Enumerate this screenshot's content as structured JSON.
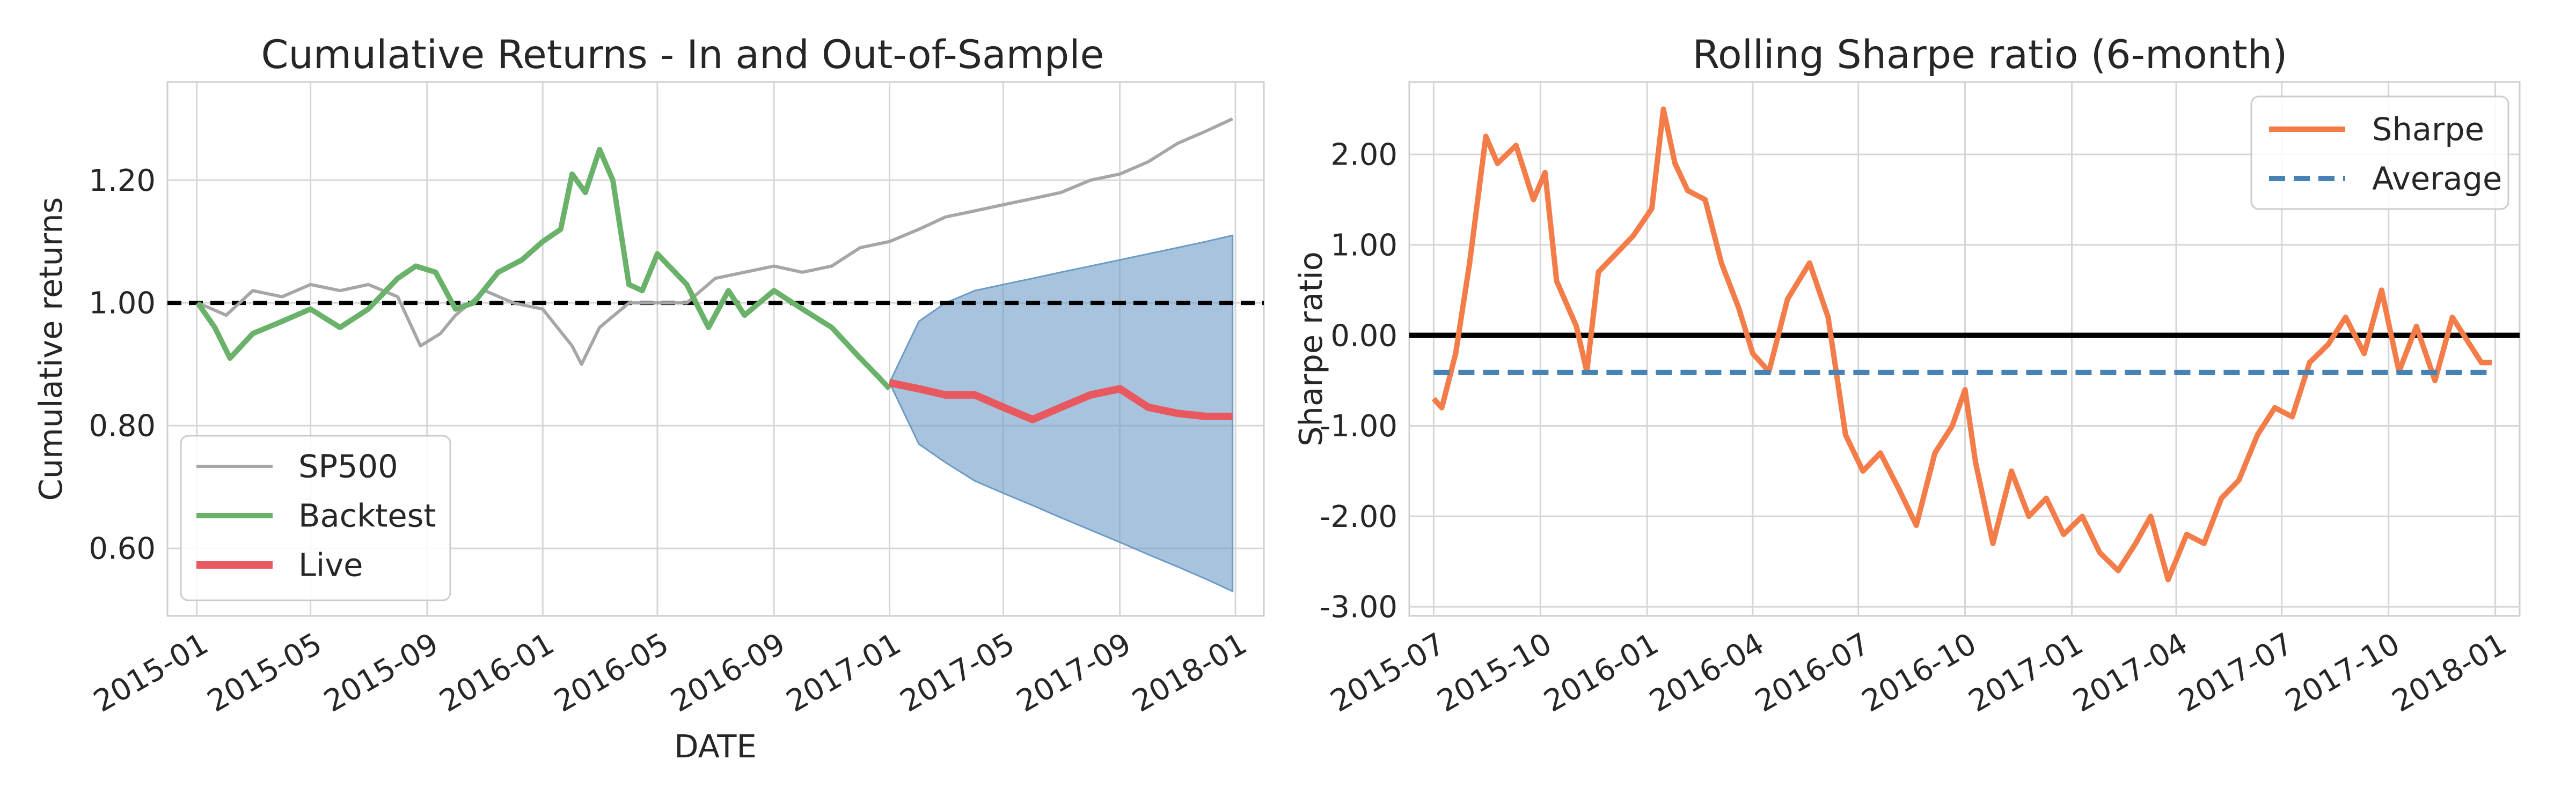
{
  "chart_data": [
    {
      "type": "line",
      "title": "Cumulative Returns - In and Out-of-Sample",
      "xlabel": "DATE",
      "ylabel": "Cumulative returns",
      "xlim": [
        "2014-12-01",
        "2018-01-31"
      ],
      "ylim": [
        0.49,
        1.36
      ],
      "x_ticks": [
        "2015-01",
        "2015-05",
        "2015-09",
        "2016-01",
        "2016-05",
        "2016-09",
        "2017-01",
        "2017-05",
        "2017-09",
        "2018-01"
      ],
      "y_ticks": [
        0.6,
        0.8,
        1.0,
        1.2
      ],
      "y_tick_labels": [
        "0.60",
        "0.80",
        "1.00",
        "1.20"
      ],
      "grid": true,
      "legend_position": "lower-left",
      "reference_line": {
        "y": 1.0,
        "style": "dashed",
        "color": "#000000"
      },
      "series": [
        {
          "name": "SP500",
          "color": "#a6a6a6",
          "x": [
            "2015-01-02",
            "2015-02-01",
            "2015-03-01",
            "2015-04-01",
            "2015-05-01",
            "2015-06-01",
            "2015-07-01",
            "2015-08-01",
            "2015-08-25",
            "2015-09-15",
            "2015-10-01",
            "2015-11-01",
            "2015-12-01",
            "2016-01-01",
            "2016-02-01",
            "2016-02-11",
            "2016-03-01",
            "2016-04-01",
            "2016-05-01",
            "2016-06-01",
            "2016-07-01",
            "2016-08-01",
            "2016-09-01",
            "2016-10-01",
            "2016-11-01",
            "2016-12-01",
            "2017-01-01",
            "2017-02-01",
            "2017-03-01",
            "2017-04-01",
            "2017-05-01",
            "2017-06-01",
            "2017-07-01",
            "2017-08-01",
            "2017-09-01",
            "2017-10-01",
            "2017-11-01",
            "2017-12-01",
            "2017-12-29"
          ],
          "y": [
            1.0,
            0.98,
            1.02,
            1.01,
            1.03,
            1.02,
            1.03,
            1.01,
            0.93,
            0.95,
            0.98,
            1.02,
            1.0,
            0.99,
            0.93,
            0.9,
            0.96,
            1.0,
            1.0,
            1.0,
            1.04,
            1.05,
            1.06,
            1.05,
            1.06,
            1.09,
            1.1,
            1.12,
            1.14,
            1.15,
            1.16,
            1.17,
            1.18,
            1.2,
            1.21,
            1.23,
            1.26,
            1.28,
            1.3
          ]
        },
        {
          "name": "Backtest",
          "color": "#6ab26a",
          "x": [
            "2015-01-02",
            "2015-01-20",
            "2015-02-05",
            "2015-03-01",
            "2015-04-01",
            "2015-05-01",
            "2015-06-01",
            "2015-07-01",
            "2015-08-01",
            "2015-08-20",
            "2015-09-10",
            "2015-10-01",
            "2015-10-20",
            "2015-11-15",
            "2015-12-10",
            "2016-01-01",
            "2016-01-20",
            "2016-02-01",
            "2016-02-15",
            "2016-03-01",
            "2016-03-15",
            "2016-04-01",
            "2016-04-15",
            "2016-05-01",
            "2016-06-01",
            "2016-06-24",
            "2016-07-15",
            "2016-08-01",
            "2016-09-01",
            "2016-10-01",
            "2016-11-01",
            "2016-12-01",
            "2016-12-20",
            "2017-01-01"
          ],
          "y": [
            1.0,
            0.96,
            0.91,
            0.95,
            0.97,
            0.99,
            0.96,
            0.99,
            1.04,
            1.06,
            1.05,
            0.99,
            1.0,
            1.05,
            1.07,
            1.1,
            1.12,
            1.21,
            1.18,
            1.25,
            1.2,
            1.03,
            1.02,
            1.08,
            1.03,
            0.96,
            1.02,
            0.98,
            1.02,
            0.99,
            0.96,
            0.91,
            0.88,
            0.86
          ]
        },
        {
          "name": "Live",
          "color": "#e8585e",
          "x": [
            "2017-01-01",
            "2017-02-01",
            "2017-03-01",
            "2017-04-01",
            "2017-05-01",
            "2017-06-01",
            "2017-07-01",
            "2017-08-01",
            "2017-09-01",
            "2017-10-01",
            "2017-11-01",
            "2017-12-01",
            "2017-12-29"
          ],
          "y": [
            0.87,
            0.86,
            0.85,
            0.85,
            0.83,
            0.81,
            0.83,
            0.85,
            0.86,
            0.83,
            0.82,
            0.815,
            0.815
          ]
        }
      ],
      "cone": {
        "color": "#6c9bc6",
        "x": [
          "2017-01-01",
          "2017-02-01",
          "2017-03-01",
          "2017-04-01",
          "2017-05-01",
          "2017-06-01",
          "2017-07-01",
          "2017-08-01",
          "2017-09-01",
          "2017-10-01",
          "2017-11-01",
          "2017-12-01",
          "2017-12-29"
        ],
        "upper": [
          0.87,
          0.97,
          1.0,
          1.02,
          1.03,
          1.04,
          1.05,
          1.06,
          1.07,
          1.08,
          1.09,
          1.1,
          1.11
        ],
        "lower": [
          0.87,
          0.77,
          0.74,
          0.71,
          0.69,
          0.67,
          0.65,
          0.63,
          0.61,
          0.59,
          0.57,
          0.55,
          0.53
        ]
      }
    },
    {
      "type": "line",
      "title": "Rolling Sharpe ratio (6-month)",
      "xlabel": "",
      "ylabel": "Sharpe ratio",
      "xlim": [
        "2015-06-10",
        "2018-01-22"
      ],
      "ylim": [
        -3.1,
        2.8
      ],
      "x_ticks": [
        "2015-07",
        "2015-10",
        "2016-01",
        "2016-04",
        "2016-07",
        "2016-10",
        "2017-01",
        "2017-04",
        "2017-07",
        "2017-10",
        "2018-01"
      ],
      "y_ticks": [
        -3,
        -2,
        -1,
        0,
        1,
        2
      ],
      "y_tick_labels": [
        "-3.00",
        "-2.00",
        "-1.00",
        "0.00",
        "1.00",
        "2.00"
      ],
      "grid": true,
      "legend_position": "top-right",
      "zero_line": {
        "y": 0,
        "color": "#000000"
      },
      "series": [
        {
          "name": "Sharpe",
          "color": "#f47c48",
          "x": [
            "2015-07-01",
            "2015-07-08",
            "2015-07-20",
            "2015-08-01",
            "2015-08-15",
            "2015-08-25",
            "2015-09-10",
            "2015-09-25",
            "2015-10-05",
            "2015-10-15",
            "2015-11-01",
            "2015-11-10",
            "2015-11-20",
            "2015-12-05",
            "2015-12-20",
            "2016-01-05",
            "2016-01-15",
            "2016-01-25",
            "2016-02-05",
            "2016-02-20",
            "2016-03-05",
            "2016-03-20",
            "2016-04-01",
            "2016-04-15",
            "2016-05-01",
            "2016-05-20",
            "2016-06-05",
            "2016-06-20",
            "2016-07-05",
            "2016-07-20",
            "2016-08-05",
            "2016-08-20",
            "2016-09-05",
            "2016-09-20",
            "2016-10-01",
            "2016-10-10",
            "2016-10-25",
            "2016-11-10",
            "2016-11-25",
            "2016-12-10",
            "2016-12-25",
            "2017-01-10",
            "2017-01-25",
            "2017-02-10",
            "2017-02-25",
            "2017-03-10",
            "2017-03-25",
            "2017-04-10",
            "2017-04-25",
            "2017-05-10",
            "2017-05-25",
            "2017-06-10",
            "2017-06-25",
            "2017-07-10",
            "2017-07-25",
            "2017-08-10",
            "2017-08-25",
            "2017-09-10",
            "2017-09-25",
            "2017-10-10",
            "2017-10-25",
            "2017-11-10",
            "2017-11-25",
            "2017-12-10",
            "2017-12-20",
            "2017-12-29"
          ],
          "y": [
            -0.7,
            -0.8,
            -0.2,
            0.8,
            2.2,
            1.9,
            2.1,
            1.5,
            1.8,
            0.6,
            0.1,
            -0.4,
            0.7,
            0.9,
            1.1,
            1.4,
            2.5,
            1.9,
            1.6,
            1.5,
            0.8,
            0.3,
            -0.2,
            -0.4,
            0.4,
            0.8,
            0.2,
            -1.1,
            -1.5,
            -1.3,
            -1.7,
            -2.1,
            -1.3,
            -1.0,
            -0.6,
            -1.4,
            -2.3,
            -1.5,
            -2.0,
            -1.8,
            -2.2,
            -2.0,
            -2.4,
            -2.6,
            -2.3,
            -2.0,
            -2.7,
            -2.2,
            -2.3,
            -1.8,
            -1.6,
            -1.1,
            -0.8,
            -0.9,
            -0.3,
            -0.1,
            0.2,
            -0.2,
            0.5,
            -0.4,
            0.1,
            -0.5,
            0.2,
            -0.1,
            -0.3,
            -0.3
          ]
        },
        {
          "name": "Average",
          "color": "#4682b4",
          "style": "dashed",
          "x": [
            "2015-07-01",
            "2017-12-29"
          ],
          "y": [
            -0.41,
            -0.41
          ]
        }
      ]
    }
  ]
}
